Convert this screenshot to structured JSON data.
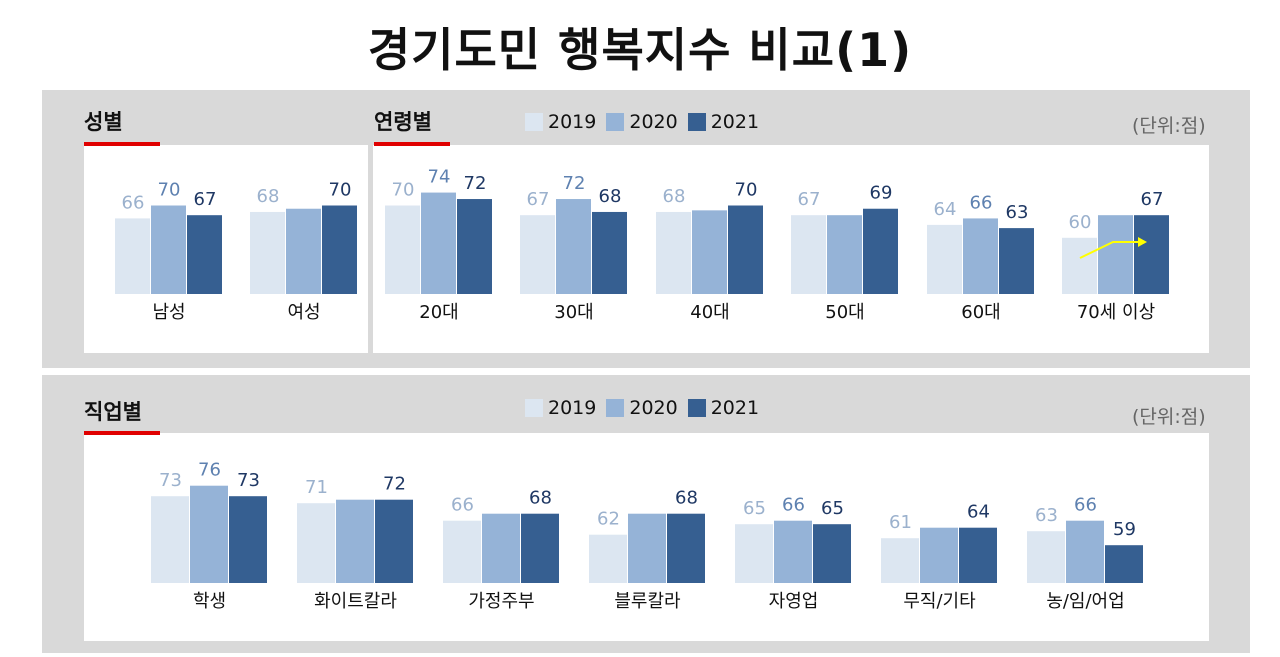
{
  "title": "경기도민 행복지수 비교(1)",
  "colors": {
    "y2019": "#dce6f1",
    "y2020": "#95b3d7",
    "y2021": "#365f91",
    "label2019": "#9bb1cd",
    "label2020": "#5e81b0",
    "label2021": "#1f3864",
    "arrow": "#ffff00"
  },
  "top": {
    "gender_label": "성별",
    "age_label": "연령별",
    "unit": "(단위:점)",
    "legend": [
      "2019",
      "2020",
      "2021"
    ]
  },
  "bottom": {
    "job_label": "직업별",
    "unit": "(단위:점)",
    "legend": [
      "2019",
      "2020",
      "2021"
    ]
  },
  "chart_data": [
    {
      "type": "bar",
      "title": "성별",
      "categories": [
        "남성",
        "여성"
      ],
      "series": [
        {
          "name": "2019",
          "values": [
            66,
            68
          ]
        },
        {
          "name": "2020",
          "values": [
            70,
            null
          ]
        },
        {
          "name": "2021",
          "values": [
            67,
            70
          ]
        }
      ],
      "bar_values": [
        [
          66,
          70,
          67
        ],
        [
          68,
          69,
          70
        ]
      ]
    },
    {
      "type": "bar",
      "title": "연령별",
      "categories": [
        "20대",
        "30대",
        "40대",
        "50대",
        "60대",
        "70세 이상"
      ],
      "series": [
        {
          "name": "2019",
          "values": [
            70,
            67,
            68,
            67,
            64,
            60
          ]
        },
        {
          "name": "2020",
          "values": [
            74,
            72,
            null,
            null,
            66,
            null
          ]
        },
        {
          "name": "2021",
          "values": [
            72,
            68,
            70,
            69,
            63,
            67
          ]
        }
      ],
      "bar_values": [
        [
          70,
          74,
          72
        ],
        [
          67,
          72,
          68
        ],
        [
          68,
          68.5,
          70
        ],
        [
          67,
          67,
          69
        ],
        [
          64,
          66,
          63
        ],
        [
          60,
          67,
          67
        ]
      ]
    },
    {
      "type": "bar",
      "title": "직업별",
      "categories": [
        "학생",
        "화이트칼라",
        "가정주부",
        "블루칼라",
        "자영업",
        "무직/기타",
        "농/임/어업"
      ],
      "series": [
        {
          "name": "2019",
          "values": [
            73,
            71,
            66,
            62,
            65,
            61,
            63
          ]
        },
        {
          "name": "2020",
          "values": [
            76,
            null,
            null,
            null,
            66,
            null,
            66
          ]
        },
        {
          "name": "2021",
          "values": [
            73,
            72,
            68,
            68,
            65,
            64,
            59
          ]
        }
      ],
      "bar_values": [
        [
          73,
          76,
          73
        ],
        [
          71,
          72,
          72
        ],
        [
          66,
          68,
          68
        ],
        [
          62,
          68,
          68
        ],
        [
          65,
          66,
          65
        ],
        [
          61,
          64,
          64
        ],
        [
          63,
          66,
          59
        ]
      ]
    }
  ]
}
